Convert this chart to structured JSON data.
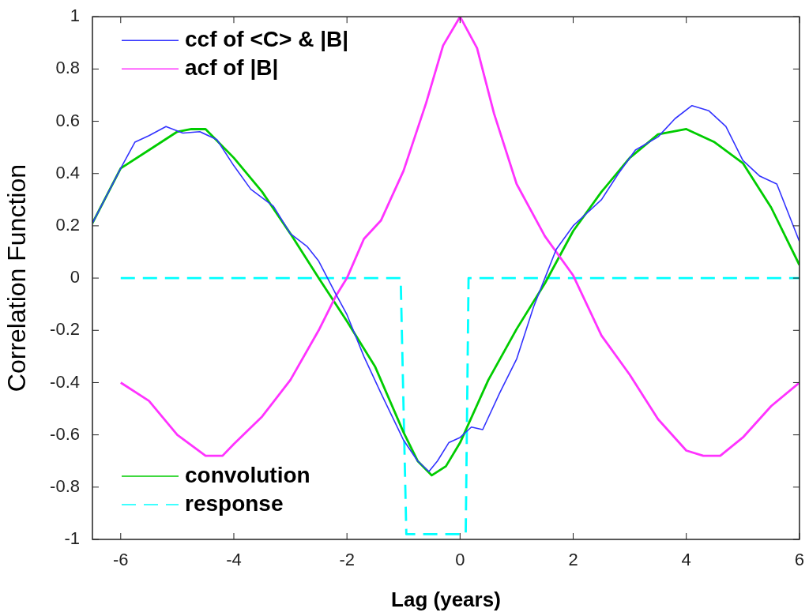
{
  "chart_data": {
    "type": "line",
    "xlabel": "Lag (years)",
    "ylabel": "Correlation Function",
    "xlim": [
      -6.5,
      6
    ],
    "xticks": [
      -6,
      -4,
      -2,
      0,
      2,
      4,
      6
    ],
    "ylim": [
      -1,
      1
    ],
    "yticks": [
      -1,
      -0.8,
      -0.6,
      -0.4,
      -0.2,
      0,
      0.2,
      0.4,
      0.6,
      0.8,
      1
    ],
    "grid": false,
    "legend": "top left",
    "marker": "none",
    "series": [
      {
        "name": "ccf of <C> & |B|",
        "color": "#3333ff",
        "line_style": "solid",
        "x": [
          -6.5,
          -6,
          -5.75,
          -5.5,
          -5.2,
          -4.9,
          -4.6,
          -4.3,
          -4,
          -3.7,
          -3.3,
          -3,
          -2.7,
          -2.5,
          -2.2,
          -2,
          -1.7,
          -1.4,
          -1,
          -0.75,
          -0.55,
          -0.4,
          -0.2,
          0,
          0.2,
          0.4,
          0.7,
          1,
          1.3,
          1.5,
          1.7,
          2,
          2.5,
          2.8,
          3.1,
          3.5,
          3.8,
          4.1,
          4.4,
          4.7,
          5,
          5.3,
          5.6,
          6
        ],
        "values": [
          0.21,
          0.42,
          0.52,
          0.545,
          0.58,
          0.555,
          0.56,
          0.53,
          0.43,
          0.34,
          0.275,
          0.17,
          0.12,
          0.065,
          -0.06,
          -0.14,
          -0.3,
          -0.44,
          -0.62,
          -0.7,
          -0.74,
          -0.7,
          -0.63,
          -0.61,
          -0.57,
          -0.58,
          -0.44,
          -0.31,
          -0.11,
          0,
          0.11,
          0.2,
          0.3,
          0.4,
          0.49,
          0.54,
          0.61,
          0.66,
          0.64,
          0.58,
          0.45,
          0.39,
          0.36,
          0.14
        ]
      },
      {
        "name": "acf of |B|",
        "color": "#ff33ff",
        "line_style": "solid",
        "x": [
          -6,
          -5.5,
          -5,
          -4.5,
          -4.2,
          -4,
          -3.5,
          -3,
          -2.5,
          -2.2,
          -2,
          -1.7,
          -1.4,
          -1,
          -0.6,
          -0.3,
          0,
          0.3,
          0.6,
          1,
          1.5,
          2,
          2.5,
          3,
          3.5,
          4,
          4.3,
          4.6,
          5,
          5.5,
          6
        ],
        "values": [
          -0.4,
          -0.47,
          -0.6,
          -0.68,
          -0.68,
          -0.635,
          -0.53,
          -0.39,
          -0.2,
          -0.07,
          0,
          0.15,
          0.22,
          0.41,
          0.67,
          0.89,
          1,
          0.88,
          0.63,
          0.36,
          0.16,
          0.01,
          -0.22,
          -0.37,
          -0.54,
          -0.66,
          -0.68,
          -0.68,
          -0.61,
          -0.49,
          -0.4
        ]
      },
      {
        "name": "convolution",
        "color": "#00cc00",
        "line_style": "solid",
        "x": [
          -6.5,
          -6,
          -5.5,
          -5,
          -4.75,
          -4.5,
          -4,
          -3.5,
          -3,
          -2.5,
          -2,
          -1.5,
          -1,
          -0.75,
          -0.5,
          -0.25,
          0,
          0.5,
          1,
          1.5,
          2,
          2.5,
          3,
          3.5,
          4,
          4.5,
          5,
          5.5,
          6
        ],
        "values": [
          0.21,
          0.42,
          0.49,
          0.56,
          0.57,
          0.57,
          0.46,
          0.33,
          0.17,
          0,
          -0.165,
          -0.34,
          -0.59,
          -0.7,
          -0.755,
          -0.72,
          -0.63,
          -0.39,
          -0.195,
          -0.02,
          0.18,
          0.33,
          0.46,
          0.55,
          0.57,
          0.52,
          0.44,
          0.27,
          0.05
        ]
      },
      {
        "name": "response",
        "color": "#00ffff",
        "line_style": "dashed",
        "x": [
          -6,
          -1.05,
          -0.95,
          0.1,
          0.15,
          6
        ],
        "values": [
          0,
          0,
          -0.98,
          -0.98,
          0,
          0
        ]
      }
    ]
  }
}
